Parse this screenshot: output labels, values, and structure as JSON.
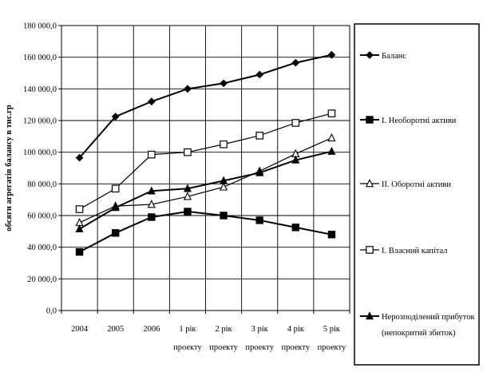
{
  "chart_data": {
    "type": "line",
    "title": "",
    "xlabel": "",
    "ylabel": "обсяги агрегатів балансу в тис.гр",
    "categories": [
      [
        "2004"
      ],
      [
        "2005"
      ],
      [
        "2006"
      ],
      [
        "1 рік",
        "проекту"
      ],
      [
        "2 рік",
        "проекту"
      ],
      [
        "3 рік",
        "проекту"
      ],
      [
        "4 рік",
        "проекту"
      ],
      [
        "5 рік",
        "проекту"
      ]
    ],
    "ylim": [
      0,
      180000
    ],
    "ytick_step": 20000,
    "ytick_labels": [
      "0,0",
      "20 000,0",
      "40 000,0",
      "60 000,0",
      "80 000,0",
      "100 000,0",
      "120 000,0",
      "140 000,0",
      "160 000,0",
      "180 000,0"
    ],
    "grid": true,
    "legend_position": "right",
    "series": [
      {
        "name": "Баланс",
        "marker": "diamond-filled",
        "color": "#000000",
        "values": [
          96500,
          122500,
          132000,
          140000,
          143500,
          149000,
          156500,
          161500
        ]
      },
      {
        "name": "І. Необоротні активи",
        "marker": "square-filled",
        "color": "#000000",
        "values": [
          37000,
          49000,
          59000,
          62500,
          60000,
          57000,
          52500,
          48000
        ]
      },
      {
        "name": "ІІ. Оборотні активи",
        "marker": "triangle-open",
        "color": "#000000",
        "values": [
          55500,
          66000,
          67000,
          72000,
          78000,
          88000,
          99000,
          109000
        ]
      },
      {
        "name": "І. Власний капітал",
        "marker": "square-open",
        "color": "#000000",
        "values": [
          64000,
          77000,
          98500,
          100000,
          105000,
          110500,
          118500,
          124500
        ]
      },
      {
        "name": "Нерозподілений прибуток (непокритий збиток)",
        "name_lines": [
          "Нерозподілений прибуток",
          "(непокритий збиток)"
        ],
        "marker": "triangle-filled",
        "color": "#000000",
        "values": [
          51500,
          65000,
          75500,
          77000,
          82000,
          87000,
          95000,
          100500
        ]
      }
    ]
  }
}
